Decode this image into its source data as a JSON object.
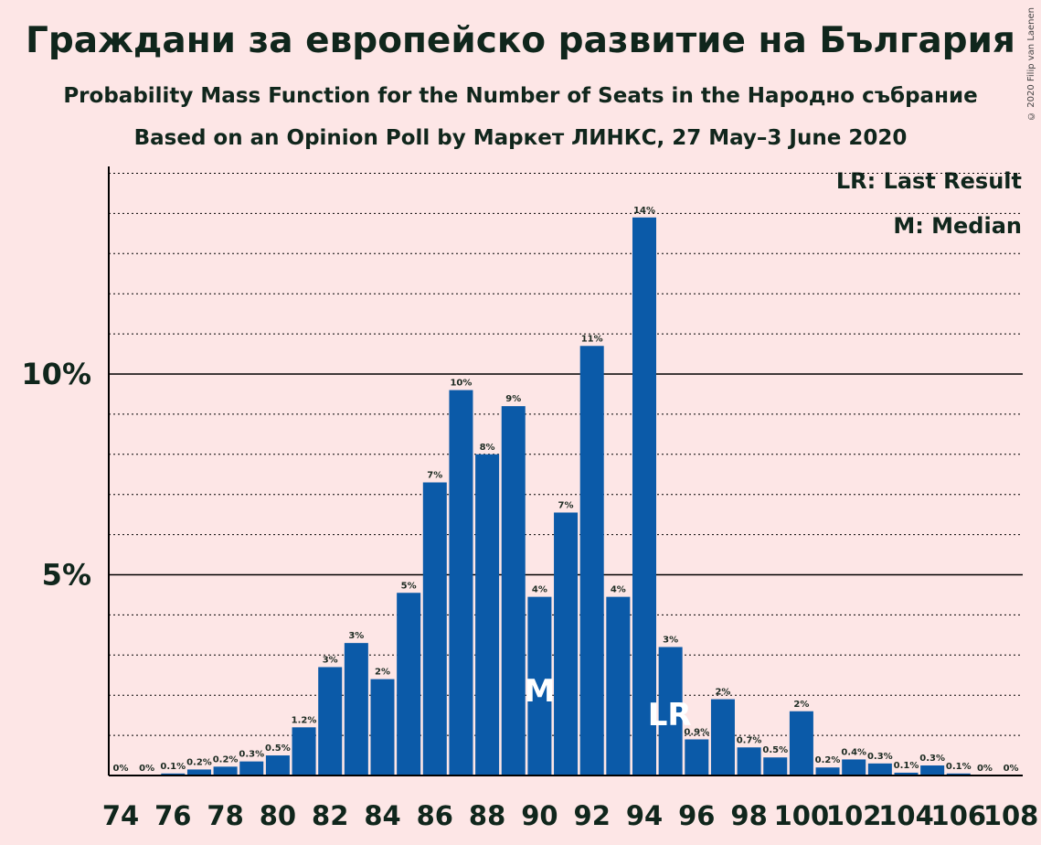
{
  "title": "Граждани за европейско развитие на България",
  "subtitle": "Probability Mass Function for the Number of Seats in the Народно събрание",
  "poll": "Based on an Opinion Poll by Маркет ЛИНКС, 27 May–3 June 2020",
  "copyright": "© 2020 Filip van Laenen",
  "legend": {
    "last_result": "LR: Last Result",
    "median": "M: Median"
  },
  "colors": {
    "background": "#fde6e6",
    "bar": "#0b5aa8",
    "text": "#10261c"
  },
  "chart_data": {
    "type": "bar",
    "xlabel": "",
    "ylabel": "",
    "ylim": [
      0,
      15.2
    ],
    "y_ticks": [
      {
        "value": 5,
        "label": "5%"
      },
      {
        "value": 10,
        "label": "10%"
      }
    ],
    "minor_grid_step": 1,
    "x_tick_labels": [
      "74",
      "76",
      "78",
      "80",
      "82",
      "84",
      "86",
      "88",
      "90",
      "92",
      "94",
      "96",
      "98",
      "100",
      "102",
      "104",
      "106",
      "108"
    ],
    "median_seat": 90,
    "median_marker": "M",
    "last_result_seat": 95,
    "last_result_marker": "LR",
    "bars": [
      {
        "seat": 74,
        "value": 0.0,
        "label": "0%"
      },
      {
        "seat": 75,
        "value": 0.0,
        "label": "0%"
      },
      {
        "seat": 76,
        "value": 0.05,
        "label": "0.1%"
      },
      {
        "seat": 77,
        "value": 0.15,
        "label": "0.2%"
      },
      {
        "seat": 78,
        "value": 0.22,
        "label": "0.2%"
      },
      {
        "seat": 79,
        "value": 0.35,
        "label": "0.3%"
      },
      {
        "seat": 80,
        "value": 0.5,
        "label": "0.5%"
      },
      {
        "seat": 81,
        "value": 1.2,
        "label": "1.2%"
      },
      {
        "seat": 82,
        "value": 2.7,
        "label": "3%"
      },
      {
        "seat": 83,
        "value": 3.3,
        "label": "3%"
      },
      {
        "seat": 84,
        "value": 2.4,
        "label": "2%"
      },
      {
        "seat": 85,
        "value": 4.55,
        "label": "5%"
      },
      {
        "seat": 86,
        "value": 7.3,
        "label": "7%"
      },
      {
        "seat": 87,
        "value": 9.6,
        "label": "10%"
      },
      {
        "seat": 88,
        "value": 8.0,
        "label": "8%"
      },
      {
        "seat": 89,
        "value": 9.2,
        "label": "9%"
      },
      {
        "seat": 90,
        "value": 4.45,
        "label": "4%"
      },
      {
        "seat": 91,
        "value": 6.55,
        "label": "7%"
      },
      {
        "seat": 92,
        "value": 10.7,
        "label": "11%"
      },
      {
        "seat": 93,
        "value": 4.45,
        "label": "4%"
      },
      {
        "seat": 94,
        "value": 13.9,
        "label": "14%"
      },
      {
        "seat": 95,
        "value": 3.2,
        "label": "3%"
      },
      {
        "seat": 96,
        "value": 0.9,
        "label": "0.9%"
      },
      {
        "seat": 97,
        "value": 1.9,
        "label": "2%"
      },
      {
        "seat": 98,
        "value": 0.7,
        "label": "0.7%"
      },
      {
        "seat": 99,
        "value": 0.45,
        "label": "0.5%"
      },
      {
        "seat": 100,
        "value": 1.6,
        "label": "2%"
      },
      {
        "seat": 101,
        "value": 0.2,
        "label": "0.2%"
      },
      {
        "seat": 102,
        "value": 0.4,
        "label": "0.4%"
      },
      {
        "seat": 103,
        "value": 0.3,
        "label": "0.3%"
      },
      {
        "seat": 104,
        "value": 0.07,
        "label": "0.1%"
      },
      {
        "seat": 105,
        "value": 0.25,
        "label": "0.3%"
      },
      {
        "seat": 106,
        "value": 0.05,
        "label": "0.1%"
      },
      {
        "seat": 107,
        "value": 0.0,
        "label": "0%"
      },
      {
        "seat": 108,
        "value": 0.0,
        "label": "0%"
      }
    ]
  }
}
